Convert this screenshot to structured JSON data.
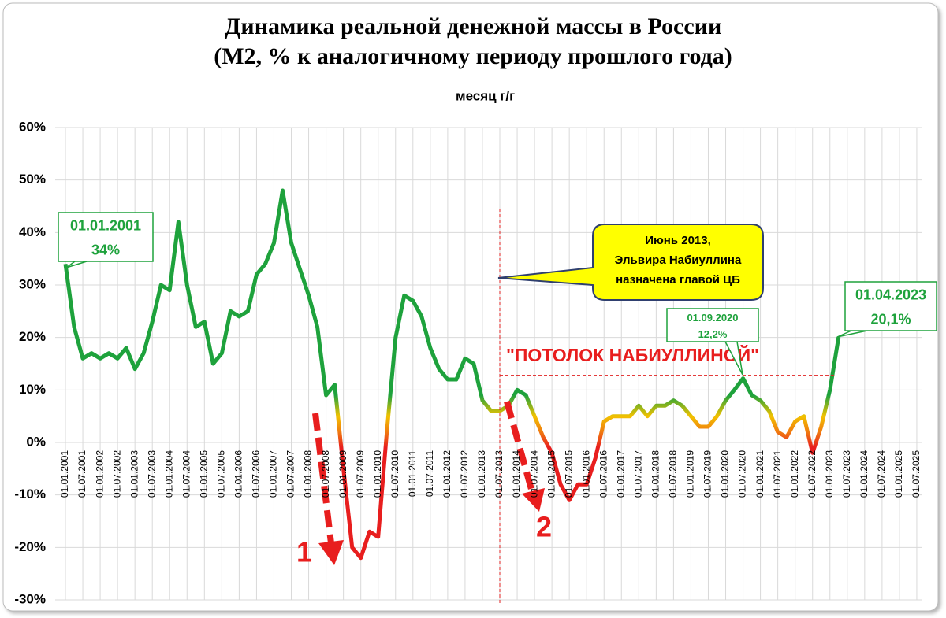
{
  "chart_data": {
    "type": "line",
    "title": [
      "Динамика реальной денежной массы в России",
      "(М2, % к аналогичному периоду прошлого года)"
    ],
    "categories": [
      "01.01.2001",
      null,
      "01.07.2001",
      null,
      "01.01.2002",
      null,
      "01.07.2002",
      null,
      "01.01.2003",
      null,
      "01.07.2003",
      null,
      "01.01.2004",
      null,
      "01.07.2004",
      null,
      "01.01.2005",
      null,
      "01.07.2005",
      null,
      "01.01.2006",
      null,
      "01.07.2006",
      null,
      "01.01.2007",
      null,
      "01.07.2007",
      null,
      "01.01.2008",
      null,
      "01.07.2008",
      null,
      "01.01.2009",
      null,
      "01.07.2009",
      null,
      "01.01.2010",
      null,
      "01.07.2010",
      null,
      "01.01.2011",
      null,
      "01.07.2011",
      null,
      "01.01.2012",
      null,
      "01.07.2012",
      null,
      "01.01.2013",
      null,
      "01.07.2013",
      null,
      "01.01.2014",
      null,
      "01.07.2014",
      null,
      "01.01.2015",
      null,
      "01.07.2015",
      null,
      "01.01.2016",
      null,
      "01.07.2016",
      null,
      "01.01.2017",
      null,
      "01.07.2017",
      null,
      "01.01.2018",
      null,
      "01.07.2018",
      null,
      "01.01.2019",
      null,
      "01.07.2019",
      null,
      "01.01.2020",
      null,
      "01.07.2020",
      null,
      "01.01.2021",
      null,
      "01.07.2021",
      null,
      "01.01.2022",
      null,
      "01.07.2022",
      null,
      "01.01.2023",
      null,
      "01.07.2023",
      null,
      "01.01.2024",
      null,
      "01.07.2024",
      null,
      "01.01.2025",
      null,
      "01.07.2025"
    ],
    "series": [
      {
        "name": "месяц г/г",
        "color_stops": [
          {
            "value": 9,
            "color": "#1ea23c"
          },
          {
            "value": 5,
            "color": "#f2c200"
          },
          {
            "value": 2,
            "color": "#f07a10"
          },
          {
            "value": -1,
            "color": "#e81e1e"
          }
        ],
        "values": [
          34,
          22,
          16,
          17,
          16,
          17,
          16,
          18,
          14,
          17,
          23,
          30,
          29,
          42,
          30,
          22,
          23,
          15,
          17,
          25,
          24,
          25,
          32,
          34,
          38,
          48,
          38,
          33,
          28,
          22,
          9,
          11,
          -5,
          -20,
          -22,
          -17,
          -18,
          2,
          20,
          28,
          27,
          24,
          18,
          14,
          12,
          12,
          16,
          15,
          8,
          6,
          6,
          7,
          10,
          9,
          5,
          1,
          -2,
          -8,
          -11,
          -8,
          -8,
          -3,
          4,
          5,
          5,
          5,
          7,
          5,
          7,
          7,
          8,
          7,
          5,
          3,
          3,
          5,
          8,
          10,
          12.2,
          9,
          8,
          6,
          2,
          1,
          4,
          5,
          -2,
          3,
          10,
          20.1,
          null,
          null,
          null,
          null,
          null,
          null,
          null,
          null,
          null
        ]
      }
    ],
    "ylim": [
      -30,
      60
    ],
    "yticks": [
      {
        "value": -30,
        "label": "-30%"
      },
      {
        "value": -20,
        "label": "-20%"
      },
      {
        "value": -10,
        "label": "-10%"
      },
      {
        "value": 0,
        "label": "0%"
      },
      {
        "value": 10,
        "label": "10%"
      },
      {
        "value": 20,
        "label": "20%"
      },
      {
        "value": 30,
        "label": "30%"
      },
      {
        "value": 40,
        "label": "40%"
      },
      {
        "value": 50,
        "label": "50%"
      },
      {
        "value": 60,
        "label": "60%"
      }
    ],
    "grid": true,
    "legend": "top",
    "annotations": {
      "start": [
        "01.01.2001",
        "34%"
      ],
      "end": [
        "01.04.2023",
        "20,1%"
      ],
      "peak": [
        "01.09.2020",
        "12,2%"
      ],
      "note": [
        "Июнь 2013,",
        "Эльвира Набиуллина",
        "назначена главой ЦБ"
      ],
      "note_date": "01.07.2013",
      "ceiling": "\"ПОТОЛОК НАБИУЛЛИНОЙ\"",
      "ceiling_value": 12.8,
      "drop1": "1",
      "drop2": "2"
    }
  }
}
